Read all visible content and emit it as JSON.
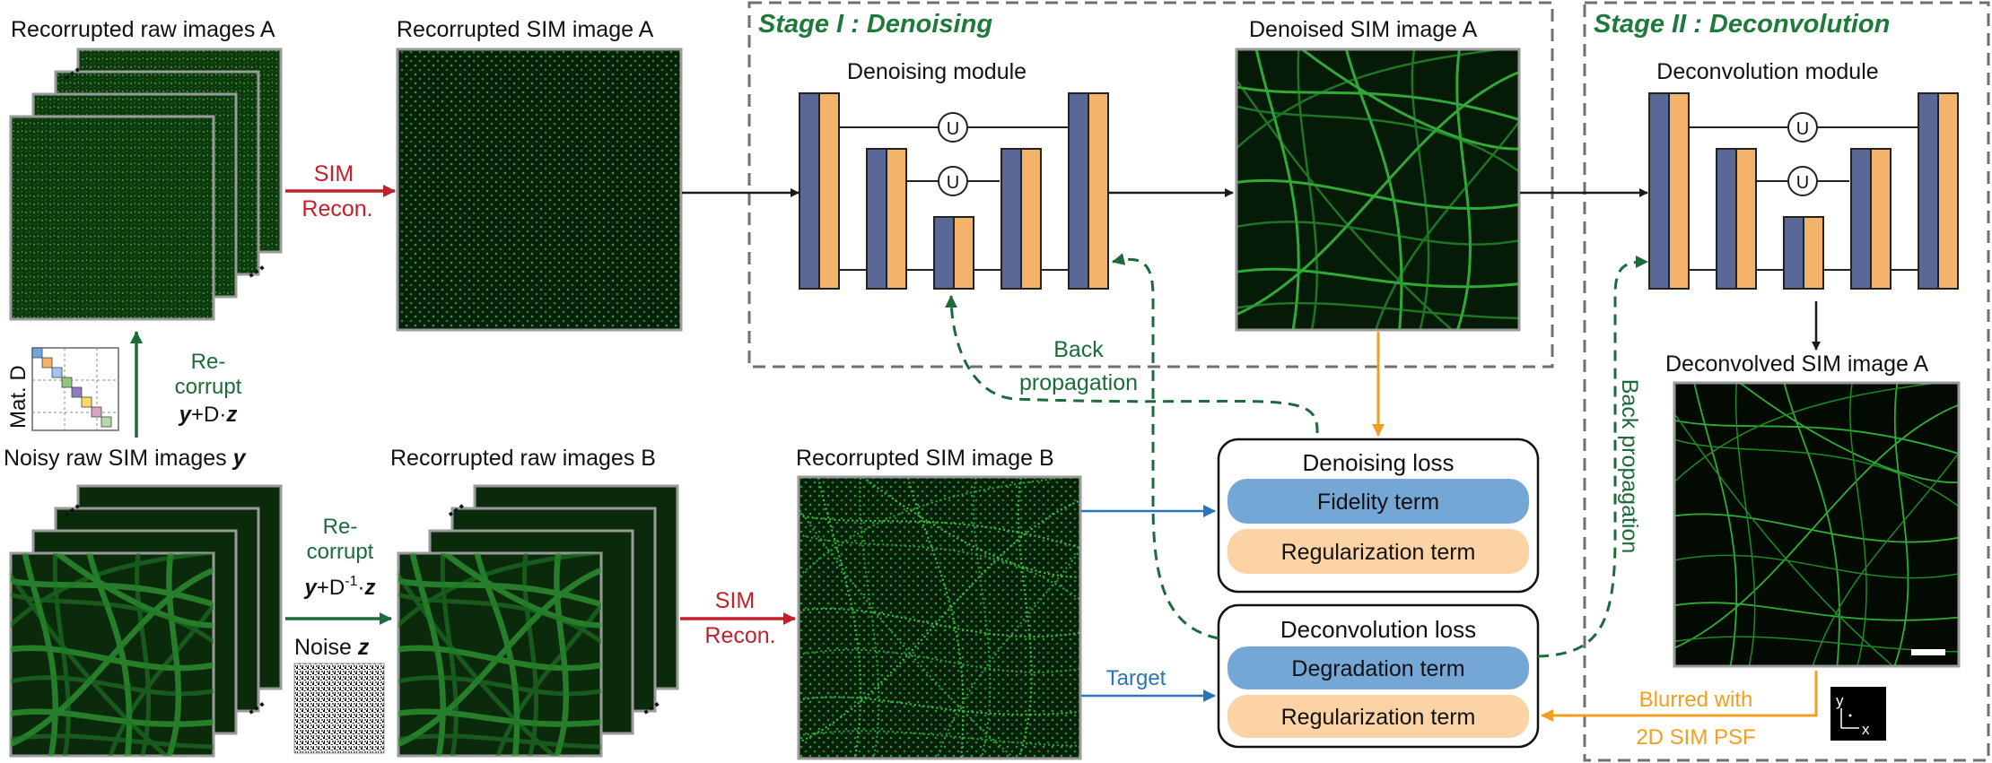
{
  "labels": {
    "rec_raw_a": "Recorrupted raw images A",
    "rec_sim_a": "Recorrupted SIM image A",
    "stage1": "Stage I : Denoising",
    "den_module": "Denoising module",
    "den_sim_a": "Denoised SIM image A",
    "stage2": "Stage II : Deconvolution",
    "dec_module": "Deconvolution module",
    "dec_sim_a": "Deconvolved SIM image A",
    "noisy_raw_prefix": "Noisy raw SIM images ",
    "noisy_raw_y": "y",
    "rec_raw_b": "Recorrupted raw images B",
    "rec_sim_b": "Recorrupted SIM image B",
    "sim_recon_1": "SIM",
    "sim_recon_2": "Recon.",
    "recorrupt_1": "Re-",
    "recorrupt_2": "corrupt",
    "eq_a_y": "y",
    "eq_a_mid": "+D·",
    "eq_a_z": "z",
    "eq_b_y": "y",
    "eq_b_mid": "+D",
    "eq_b_sup": "-1",
    "eq_b_dot": "·",
    "eq_b_z": "z",
    "noise_prefix": "Noise ",
    "noise_z": "z",
    "mat_d": "Mat. D",
    "backprop_1": "Back",
    "backprop_2": "propagation",
    "backprop_vertical": "Back propagation",
    "den_loss_title": "Denoising loss",
    "fidelity": "Fidelity term",
    "reg1": "Regularization term",
    "dec_loss_title": "Deconvolution loss",
    "degradation": "Degradation term",
    "reg2": "Regularization term",
    "target": "Target",
    "blurred_1": "Blurred with",
    "blurred_2": "2D SIM PSF",
    "axis_y": "y",
    "axis_x": "x",
    "unet_u": "U",
    "dots": "..."
  },
  "colors": {
    "unet_blue": "#5a6898",
    "unet_orange": "#f4b36a",
    "pill_blue": "#74a6d6",
    "pill_orange": "#fbd3a4",
    "red_arrow": "#c4202c",
    "green_arrow": "#1e6b3a",
    "blue_arrow": "#2a74b8",
    "orange_arrow": "#f0a020",
    "stage_green": "#1e7a3a"
  }
}
